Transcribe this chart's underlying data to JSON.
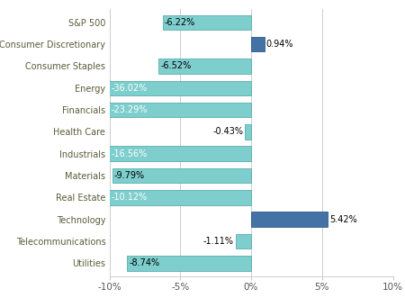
{
  "categories": [
    "S&P 500",
    "Consumer Discretionary",
    "Consumer Staples",
    "Energy",
    "Financials",
    "Health Care",
    "Industrials",
    "Materials",
    "Real Estate",
    "Technology",
    "Telecommunications",
    "Utilities"
  ],
  "values": [
    -6.22,
    0.94,
    -6.52,
    -36.02,
    -23.29,
    -0.43,
    -16.56,
    -9.79,
    -10.12,
    5.42,
    -1.11,
    -8.74
  ],
  "labels": [
    "-6.22%",
    "0.94%",
    "-6.52%",
    "-36.02%",
    "-23.29%",
    "-0.43%",
    "-16.56%",
    "-9.79%",
    "-10.12%",
    "5.42%",
    "-1.11%",
    "-8.74%"
  ],
  "bar_color_light": "#7ECECE",
  "bar_color_dark": "#4472A4",
  "positive_indices": [
    1,
    9
  ],
  "xlim": [
    -10,
    10
  ],
  "xtick_labels": [
    "-10%",
    "-5%",
    "0%",
    "5%",
    "10%"
  ],
  "xtick_values": [
    -10,
    -5,
    0,
    5,
    10
  ],
  "background_color": "#FFFFFF",
  "grid_color": "#CCCCCC",
  "label_fontsize": 7.0,
  "tick_fontsize": 7.5,
  "bar_height": 0.68,
  "label_color_dark_bg": "#FFFFFF",
  "label_color_light": "#000000",
  "label_threshold_inside": 1.5
}
